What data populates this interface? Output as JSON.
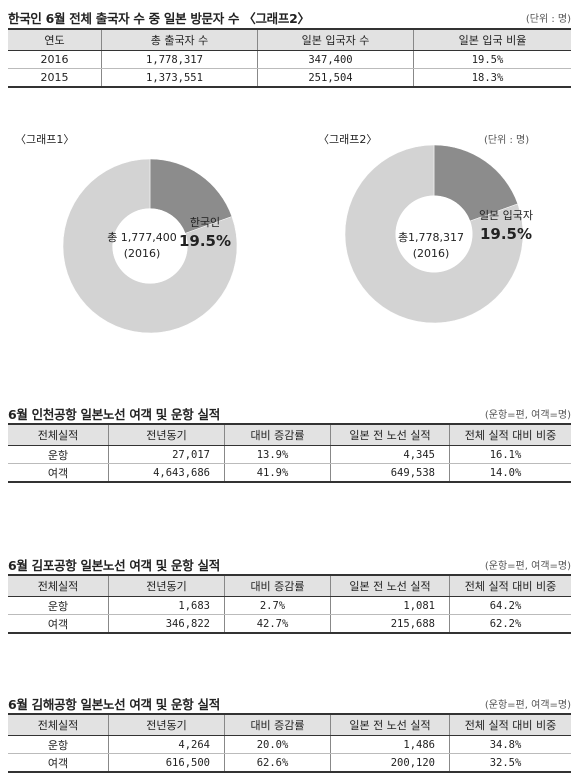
{
  "section1": {
    "title": "한국인 6월 전체 출국자 수 중 일본 방문자 수 〈그래프2〉",
    "unit": "(단위 : 명)",
    "headers": [
      "연도",
      "총 출국자 수",
      "일본 입국자 수",
      "일본 입국 비율"
    ],
    "rows": [
      [
        "2016",
        "1,778,317",
        "347,400",
        "19.5%"
      ],
      [
        "2015",
        "1,373,551",
        "251,504",
        "18.3%"
      ]
    ]
  },
  "graph1": {
    "label": "〈그래프1〉",
    "center_line1": "총 1,777,400",
    "center_line2": "(2016)",
    "slice_name": "한국인",
    "slice_pct": "19.5%"
  },
  "graph2": {
    "label": "〈그래프2〉",
    "unit": "(단위 : 명)",
    "center_line1": "총1,778,317",
    "center_line2": "(2016)",
    "slice_name": "일본 입국자",
    "slice_pct": "19.5%"
  },
  "colors": {
    "donut_main": "#d3d3d3",
    "donut_slice": "#8c8c8c",
    "header_bg": "#e2e2e2"
  },
  "chart_data": [
    {
      "type": "pie",
      "title": "〈그래프1〉",
      "categories": [
        "한국인",
        ""
      ],
      "values": [
        19.5,
        80.5
      ]
    },
    {
      "type": "pie",
      "title": "〈그래프2〉",
      "categories": [
        "일본 입국자",
        ""
      ],
      "values": [
        19.5,
        80.5
      ]
    }
  ],
  "section2": {
    "title": "6월 인천공항 일본노선 여객 및 운항 실적",
    "unit": "(운항=편, 여객=명)",
    "headers": [
      "전체실적",
      "전년동기",
      "대비 증감률",
      "일본 전 노선 실적",
      "전체 실적 대비 비중"
    ],
    "rows": [
      [
        "운항",
        "27,017",
        "13.9%",
        "4,345",
        "16.1%"
      ],
      [
        "여객",
        "4,643,686",
        "41.9%",
        "649,538",
        "14.0%"
      ]
    ]
  },
  "section3": {
    "title": "6월 김포공항 일본노선 여객 및 운항 실적",
    "unit": "(운항=편, 여객=명)",
    "headers": [
      "전체실적",
      "전년동기",
      "대비 증감률",
      "일본 전 노선 실적",
      "전체 실적 대비 비중"
    ],
    "rows": [
      [
        "운항",
        "1,683",
        "2.7%",
        "1,081",
        "64.2%"
      ],
      [
        "여객",
        "346,822",
        "42.7%",
        "215,688",
        "62.2%"
      ]
    ]
  },
  "section4": {
    "title": "6월 김해공항 일본노선 여객 및 운항 실적",
    "unit": "(운항=편, 여객=명)",
    "headers": [
      "전체실적",
      "전년동기",
      "대비 증감률",
      "일본 전 노선 실적",
      "전체 실적 대비 비중"
    ],
    "rows": [
      [
        "운항",
        "4,264",
        "20.0%",
        "1,486",
        "34.8%"
      ],
      [
        "여객",
        "616,500",
        "62.6%",
        "200,120",
        "32.5%"
      ]
    ]
  }
}
